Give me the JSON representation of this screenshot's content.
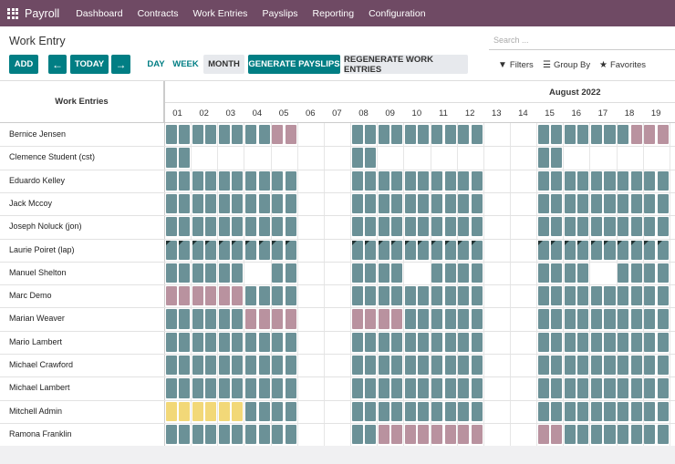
{
  "navbar": {
    "brand": "Payroll",
    "items": [
      "Dashboard",
      "Contracts",
      "Work Entries",
      "Payslips",
      "Reporting",
      "Configuration"
    ]
  },
  "control": {
    "title": "Work Entry",
    "search_placeholder": "Search ...",
    "add_label": "ADD",
    "prev_icon": "arrow-left-icon",
    "today_label": "TODAY",
    "next_icon": "arrow-right-icon",
    "day_label": "DAY",
    "week_label": "WEEK",
    "month_label": "MONTH",
    "generate_label": "GENERATE PAYSLIPS",
    "regenerate_label": "REGENERATE WORK ENTRIES",
    "filters_label": "Filters",
    "groupby_label": "Group By",
    "favorites_label": "Favorites"
  },
  "gantt": {
    "header_left": "Work Entries",
    "month": "August 2022",
    "days": [
      "01",
      "02",
      "03",
      "04",
      "05",
      "06",
      "07",
      "08",
      "09",
      "10",
      "11",
      "12",
      "13",
      "14",
      "15",
      "16",
      "17",
      "18",
      "19"
    ],
    "colors": {
      "green": "#6b9197",
      "pink": "#b9929f",
      "yellow": "#f2d878"
    },
    "legend_codes": "g=green, p=pink, y=yellow, x=green with dark corner, .=empty",
    "rows": [
      {
        "name": "Bernice Jensen",
        "cells": "ggggggggpp....gggggggggg....gggggggpppp"
      },
      {
        "name": "Clemence Student (cst)",
        "cells": "gg............gg............gg........"
      },
      {
        "name": "Eduardo Kelley",
        "cells": "gggggggggg....gggggggggg....gggggggggg"
      },
      {
        "name": "Jack Mccoy",
        "cells": "gggggggggg....gggggggggg....gggggggggg"
      },
      {
        "name": "Joseph Noluck (jon)",
        "cells": "gggggggggg....gggggggggg....gggggggggg"
      },
      {
        "name": "Laurie Poiret (lap)",
        "cells": "xxxxxxxxxx....xxxxxxxxxx....xxxxxxxxxx"
      },
      {
        "name": "Manuel Shelton",
        "cells": "gggggg..gg....gggg..gggg....gggg..gggg"
      },
      {
        "name": "Marc Demo",
        "cells": "ppppppgggg....gggggggggg....gggggggggg"
      },
      {
        "name": "Marian Weaver",
        "cells": "ggggggpppp....ppppgggggg....gggggggggg"
      },
      {
        "name": "Mario Lambert",
        "cells": "gggggggggg....gggggggggg....gggggggggg"
      },
      {
        "name": "Michael Crawford",
        "cells": "gggggggggg....gggggggggg....gggggggggg"
      },
      {
        "name": "Michael Lambert",
        "cells": "gggggggggg....gggggggggg....gggggggggg"
      },
      {
        "name": "Mitchell Admin",
        "cells": "yyyyyygggg....gggggggggg....gggggggggg"
      },
      {
        "name": "Ramona Franklin",
        "cells": "gggggggggg....ggpppppppp....ppgggggggg"
      }
    ]
  }
}
